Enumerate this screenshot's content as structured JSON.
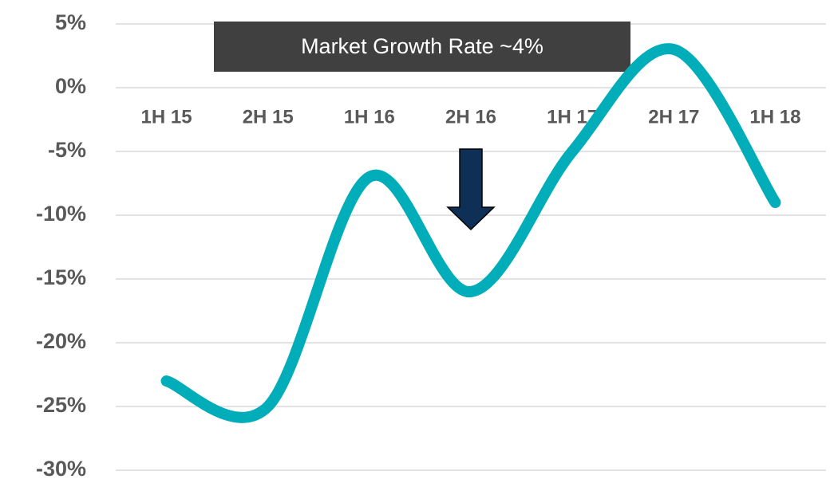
{
  "chart_data": {
    "type": "line",
    "categories": [
      "1H 15",
      "2H 15",
      "1H 16",
      "2H 16",
      "1H 17",
      "2H 17",
      "1H 18"
    ],
    "series": [
      {
        "name": "Growth",
        "color": "#00adb9",
        "values": [
          -23,
          -25,
          -7,
          -16,
          -5,
          3,
          -9
        ]
      }
    ],
    "ylim": [
      -30,
      5
    ],
    "yticks": [
      {
        "value": -30,
        "label": "-30%"
      },
      {
        "value": -25,
        "label": "-25%"
      },
      {
        "value": -20,
        "label": "-20%"
      },
      {
        "value": -15,
        "label": "-15%"
      },
      {
        "value": -10,
        "label": "-10%"
      },
      {
        "value": -5,
        "label": "-5%"
      },
      {
        "value": 0,
        "label": "0%"
      },
      {
        "value": 5,
        "label": "5%"
      }
    ],
    "grid": true,
    "annotation": "Market Growth Rate ~4%"
  }
}
